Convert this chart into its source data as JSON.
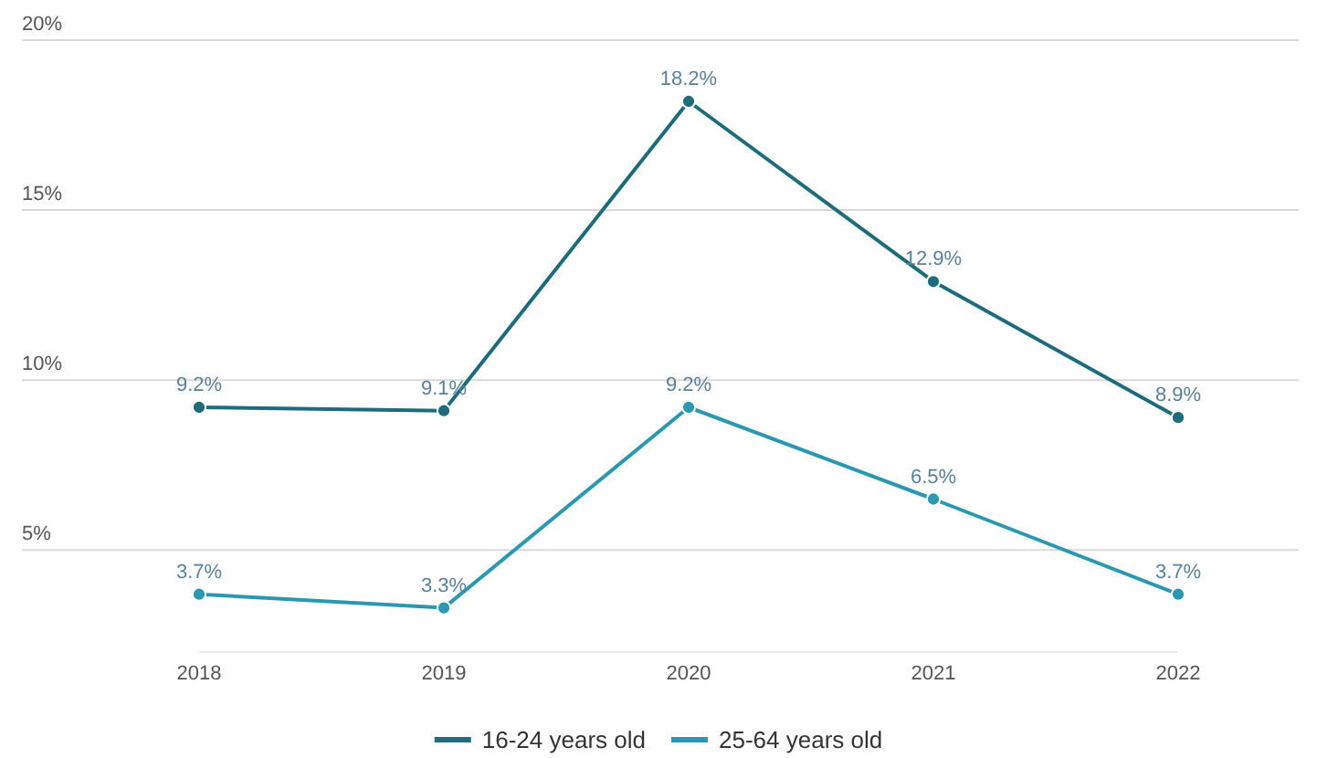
{
  "chart_data": {
    "type": "line",
    "categories": [
      "2018",
      "2019",
      "2020",
      "2021",
      "2022"
    ],
    "series": [
      {
        "name": "16-24 years old",
        "color": "#1d6b7b",
        "values": [
          9.2,
          9.1,
          18.2,
          12.9,
          8.9
        ],
        "value_labels": [
          "9.2%",
          "9.1%",
          "18.2%",
          "12.9%",
          "8.9%"
        ]
      },
      {
        "name": "25-64 years old",
        "color": "#2b97b0",
        "values": [
          3.7,
          3.3,
          9.2,
          6.5,
          3.7
        ],
        "value_labels": [
          "3.7%",
          "3.3%",
          "9.2%",
          "6.5%",
          "3.7%"
        ]
      }
    ],
    "ylim": [
      2,
      20
    ],
    "yticks": [
      {
        "value": 5,
        "label": "5%"
      },
      {
        "value": 10,
        "label": "10%"
      },
      {
        "value": 15,
        "label": "15%"
      },
      {
        "value": 20,
        "label": "20%"
      }
    ],
    "grid": "y",
    "legend": "bottom",
    "marker": "circle",
    "line_style": "solid"
  }
}
